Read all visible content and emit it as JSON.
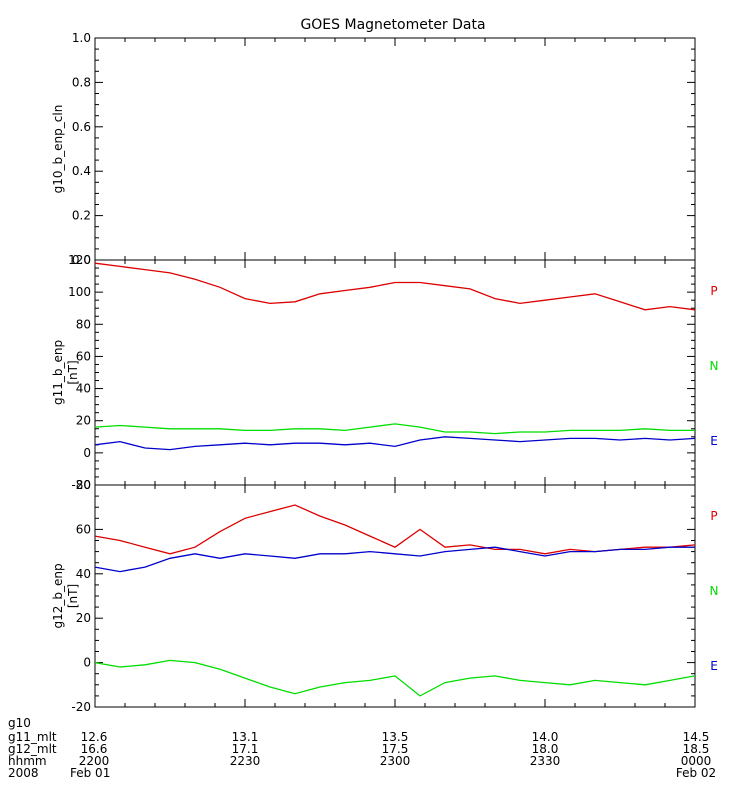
{
  "chart_data": {
    "type": "line",
    "title": "GOES Magnetometer Data",
    "panels": [
      {
        "id": "g10",
        "ylabel": "g10_b_enp_cln",
        "unit": "",
        "ylim": [
          0,
          1.0
        ],
        "yticks": [
          0.0,
          0.2,
          0.4,
          0.6,
          0.8,
          1.0
        ],
        "yticklabels": [
          "0.0",
          "0.2",
          "0.4",
          "0.6",
          "0.8",
          "1.0"
        ],
        "series": []
      },
      {
        "id": "g11",
        "ylabel": "g11_b_enp",
        "unit": "[nT]",
        "ylim": [
          -20,
          120
        ],
        "yticks": [
          -20,
          0,
          20,
          40,
          60,
          80,
          100,
          120
        ],
        "yticklabels": [
          "-20",
          "0",
          "20",
          "40",
          "60",
          "80",
          "100",
          "120"
        ],
        "series": [
          {
            "name": "P",
            "color": "#dd0000",
            "x": [
              0,
              5,
              10,
              15,
              20,
              25,
              30,
              35,
              40,
              45,
              50,
              55,
              60,
              65,
              70,
              75,
              80,
              85,
              90,
              95,
              100,
              105,
              110,
              115,
              120
            ],
            "values": [
              118,
              116,
              114,
              112,
              108,
              103,
              96,
              93,
              94,
              99,
              101,
              103,
              106,
              106,
              104,
              102,
              96,
              93,
              95,
              97,
              99,
              94,
              89,
              91,
              89
            ]
          },
          {
            "name": "N",
            "color": "#00dd00",
            "x": [
              0,
              5,
              10,
              15,
              20,
              25,
              30,
              35,
              40,
              45,
              50,
              55,
              60,
              65,
              70,
              75,
              80,
              85,
              90,
              95,
              100,
              105,
              110,
              115,
              120
            ],
            "values": [
              16,
              17,
              16,
              15,
              15,
              15,
              14,
              14,
              15,
              15,
              14,
              16,
              18,
              16,
              13,
              13,
              12,
              13,
              13,
              14,
              14,
              14,
              15,
              14,
              14
            ]
          },
          {
            "name": "E",
            "color": "#0000cc",
            "x": [
              0,
              5,
              10,
              15,
              20,
              25,
              30,
              35,
              40,
              45,
              50,
              55,
              60,
              65,
              70,
              75,
              80,
              85,
              90,
              95,
              100,
              105,
              110,
              115,
              120
            ],
            "values": [
              5,
              7,
              3,
              2,
              4,
              5,
              6,
              5,
              6,
              6,
              5,
              6,
              4,
              8,
              10,
              9,
              8,
              7,
              8,
              9,
              9,
              8,
              9,
              8,
              9
            ]
          }
        ]
      },
      {
        "id": "g12",
        "ylabel": "g12_b_enp",
        "unit": "[nT]",
        "ylim": [
          -20,
          80
        ],
        "yticks": [
          -20,
          0,
          20,
          40,
          60,
          80
        ],
        "yticklabels": [
          "-20",
          "0",
          "20",
          "40",
          "60",
          "80"
        ],
        "series": [
          {
            "name": "P",
            "color": "#dd0000",
            "x": [
              0,
              5,
              10,
              15,
              20,
              25,
              30,
              35,
              40,
              45,
              50,
              55,
              60,
              65,
              70,
              75,
              80,
              85,
              90,
              95,
              100,
              105,
              110,
              115,
              120
            ],
            "values": [
              57,
              55,
              52,
              49,
              52,
              59,
              65,
              68,
              71,
              66,
              62,
              57,
              52,
              60,
              52,
              53,
              51,
              51,
              49,
              51,
              50,
              51,
              52,
              52,
              53
            ]
          },
          {
            "name": "N",
            "color": "#00dd00",
            "x": [
              0,
              5,
              10,
              15,
              20,
              25,
              30,
              35,
              40,
              45,
              50,
              55,
              60,
              65,
              70,
              75,
              80,
              85,
              90,
              95,
              100,
              105,
              110,
              115,
              120
            ],
            "values": [
              0,
              -2,
              -1,
              1,
              0,
              -3,
              -7,
              -11,
              -14,
              -11,
              -9,
              -8,
              -6,
              -15,
              -9,
              -7,
              -6,
              -8,
              -9,
              -10,
              -8,
              -9,
              -10,
              -8,
              -6
            ]
          },
          {
            "name": "E",
            "color": "#0000cc",
            "x": [
              0,
              5,
              10,
              15,
              20,
              25,
              30,
              35,
              40,
              45,
              50,
              55,
              60,
              65,
              70,
              75,
              80,
              85,
              90,
              95,
              100,
              105,
              110,
              115,
              120
            ],
            "values": [
              43,
              41,
              43,
              47,
              49,
              47,
              49,
              48,
              47,
              49,
              49,
              50,
              49,
              48,
              50,
              51,
              52,
              50,
              48,
              50,
              50,
              51,
              51,
              52,
              52
            ]
          }
        ]
      }
    ],
    "legend_labels": [
      "P",
      "N",
      "E"
    ],
    "legend_colors": [
      "#dd0000",
      "#00dd00",
      "#0000cc"
    ],
    "xlim": [
      0,
      120
    ],
    "xticks_major": [
      0,
      30,
      60,
      90,
      120
    ],
    "x_axis_rows": [
      {
        "label": "g10",
        "values": [
          "",
          "",
          "",
          "",
          ""
        ]
      },
      {
        "label": "g11_mlt",
        "values": [
          "12.6",
          "13.1",
          "13.5",
          "14.0",
          "14.5"
        ]
      },
      {
        "label": "g12_mlt",
        "values": [
          "16.6",
          "17.1",
          "17.5",
          "18.0",
          "18.5"
        ]
      },
      {
        "label": "hhmm",
        "values": [
          "2200",
          "2230",
          "2300",
          "2330",
          "0000"
        ]
      },
      {
        "label": "2008",
        "values": [
          "Feb 01",
          "",
          "",
          "",
          "Feb 02"
        ]
      }
    ]
  }
}
